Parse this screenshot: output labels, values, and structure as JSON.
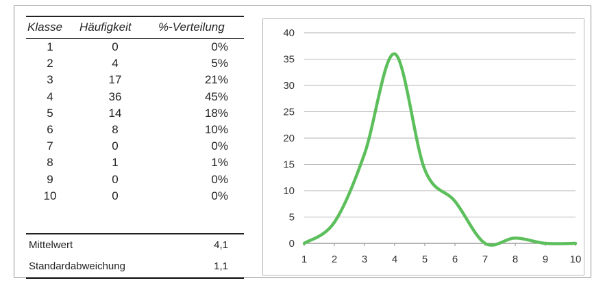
{
  "table": {
    "headers": [
      "Klasse",
      "Häufigkeit",
      "%-Verteilung"
    ],
    "rows": [
      [
        "1",
        "0",
        "0%"
      ],
      [
        "2",
        "4",
        "5%"
      ],
      [
        "3",
        "17",
        "21%"
      ],
      [
        "4",
        "36",
        "45%"
      ],
      [
        "5",
        "14",
        "18%"
      ],
      [
        "6",
        "8",
        "10%"
      ],
      [
        "7",
        "0",
        "0%"
      ],
      [
        "8",
        "1",
        "1%"
      ],
      [
        "9",
        "0",
        "0%"
      ],
      [
        "10",
        "0",
        "0%"
      ]
    ],
    "stats": [
      {
        "label": "Mittelwert",
        "value": "4,1"
      },
      {
        "label": "Standardabweichung",
        "value": "1,1"
      }
    ]
  },
  "chart_data": {
    "type": "line",
    "x": [
      1,
      2,
      3,
      4,
      5,
      6,
      7,
      8,
      9,
      10
    ],
    "series": [
      {
        "values": [
          0,
          4,
          17,
          36,
          14,
          8,
          0,
          1,
          0,
          0
        ],
        "color": "#5cbf5c"
      }
    ],
    "xticks": [
      "1",
      "2",
      "3",
      "4",
      "5",
      "6",
      "7",
      "8",
      "9",
      "10"
    ],
    "yticks": [
      "0",
      "5",
      "10",
      "15",
      "20",
      "25",
      "30",
      "35",
      "40"
    ],
    "ylim": [
      0,
      40
    ],
    "xlim": [
      1,
      10
    ],
    "grid": true,
    "smooth": true,
    "legend": "none"
  }
}
